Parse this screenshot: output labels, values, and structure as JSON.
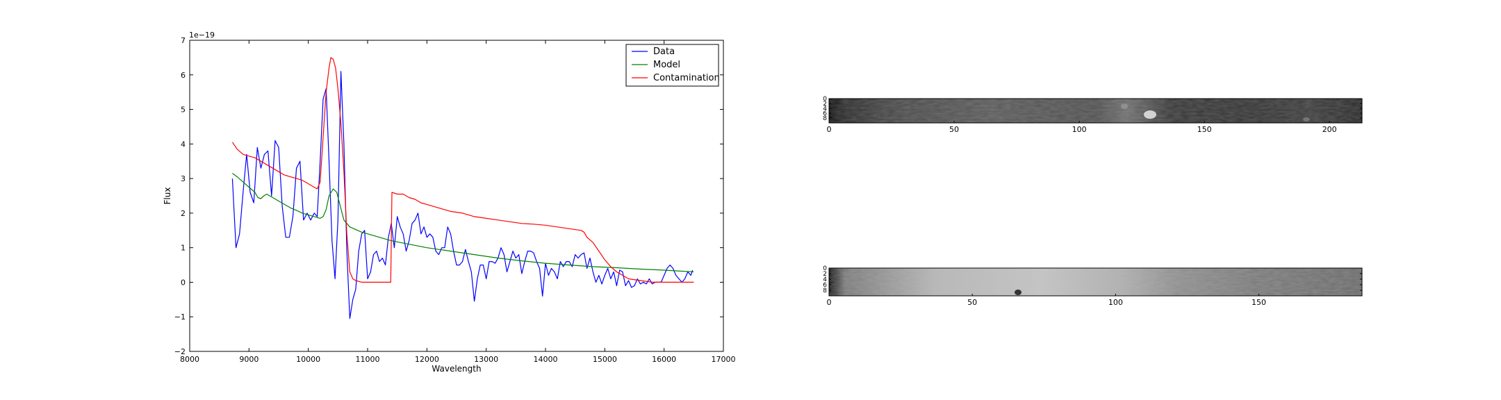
{
  "chart_data": [
    {
      "type": "line",
      "title": "",
      "xlabel": "Wavelength",
      "ylabel": "Flux",
      "offset_text": "1e−19",
      "xlim": [
        8000,
        17000
      ],
      "ylim": [
        -2,
        7
      ],
      "xticks": [
        8000,
        9000,
        10000,
        11000,
        12000,
        13000,
        14000,
        15000,
        16000,
        17000
      ],
      "yticks": [
        -2,
        -1,
        0,
        1,
        2,
        3,
        4,
        5,
        6,
        7
      ],
      "ytick_labels": [
        "−2",
        "−1",
        "0",
        "1",
        "2",
        "3",
        "4",
        "5",
        "6",
        "7"
      ],
      "grid": false,
      "legend_position": "top-right",
      "series": [
        {
          "name": "Data",
          "color": "#0000ff",
          "points": [
            [
              8720,
              3.0
            ],
            [
              8780,
              1.0
            ],
            [
              8840,
              1.4
            ],
            [
              8900,
              2.6
            ],
            [
              8960,
              3.7
            ],
            [
              9020,
              2.6
            ],
            [
              9080,
              2.3
            ],
            [
              9140,
              3.9
            ],
            [
              9200,
              3.3
            ],
            [
              9260,
              3.7
            ],
            [
              9320,
              3.8
            ],
            [
              9380,
              2.5
            ],
            [
              9440,
              4.1
            ],
            [
              9500,
              3.9
            ],
            [
              9560,
              2.2
            ],
            [
              9620,
              1.3
            ],
            [
              9680,
              1.3
            ],
            [
              9740,
              1.9
            ],
            [
              9800,
              3.3
            ],
            [
              9860,
              3.5
            ],
            [
              9920,
              1.8
            ],
            [
              9980,
              2.0
            ],
            [
              10040,
              1.8
            ],
            [
              10100,
              2.0
            ],
            [
              10150,
              1.9
            ],
            [
              10200,
              3.5
            ],
            [
              10250,
              5.3
            ],
            [
              10300,
              5.6
            ],
            [
              10350,
              3.5
            ],
            [
              10400,
              1.2
            ],
            [
              10450,
              0.1
            ],
            [
              10500,
              1.8
            ],
            [
              10550,
              6.1
            ],
            [
              10600,
              4.0
            ],
            [
              10650,
              0.9
            ],
            [
              10700,
              -1.05
            ],
            [
              10750,
              -0.5
            ],
            [
              10800,
              -0.2
            ],
            [
              10850,
              0.9
            ],
            [
              10900,
              1.4
            ],
            [
              10950,
              1.5
            ],
            [
              11000,
              0.1
            ],
            [
              11050,
              0.3
            ],
            [
              11100,
              0.8
            ],
            [
              11150,
              0.9
            ],
            [
              11200,
              0.6
            ],
            [
              11250,
              0.7
            ],
            [
              11300,
              0.5
            ],
            [
              11350,
              1.3
            ],
            [
              11400,
              1.7
            ],
            [
              11450,
              1.0
            ],
            [
              11500,
              1.9
            ],
            [
              11550,
              1.6
            ],
            [
              11600,
              1.4
            ],
            [
              11650,
              0.9
            ],
            [
              11700,
              1.2
            ],
            [
              11750,
              1.7
            ],
            [
              11800,
              1.8
            ],
            [
              11850,
              2.0
            ],
            [
              11900,
              1.4
            ],
            [
              11950,
              1.6
            ],
            [
              12000,
              1.3
            ],
            [
              12050,
              1.4
            ],
            [
              12100,
              1.3
            ],
            [
              12150,
              0.9
            ],
            [
              12200,
              0.8
            ],
            [
              12250,
              1.0
            ],
            [
              12300,
              1.0
            ],
            [
              12350,
              1.6
            ],
            [
              12400,
              1.4
            ],
            [
              12450,
              0.9
            ],
            [
              12500,
              0.5
            ],
            [
              12550,
              0.5
            ],
            [
              12600,
              0.6
            ],
            [
              12650,
              0.95
            ],
            [
              12700,
              0.6
            ],
            [
              12750,
              0.3
            ],
            [
              12800,
              -0.55
            ],
            [
              12850,
              0.1
            ],
            [
              12900,
              0.5
            ],
            [
              12950,
              0.5
            ],
            [
              13000,
              0.1
            ],
            [
              13050,
              0.6
            ],
            [
              13100,
              0.6
            ],
            [
              13150,
              0.55
            ],
            [
              13200,
              0.7
            ],
            [
              13250,
              1.0
            ],
            [
              13300,
              0.8
            ],
            [
              13350,
              0.3
            ],
            [
              13400,
              0.6
            ],
            [
              13450,
              0.9
            ],
            [
              13500,
              0.7
            ],
            [
              13550,
              0.8
            ],
            [
              13600,
              0.25
            ],
            [
              13650,
              0.6
            ],
            [
              13700,
              0.9
            ],
            [
              13750,
              0.9
            ],
            [
              13800,
              0.85
            ],
            [
              13850,
              0.6
            ],
            [
              13900,
              0.4
            ],
            [
              13950,
              -0.4
            ],
            [
              14000,
              0.55
            ],
            [
              14050,
              0.2
            ],
            [
              14100,
              0.4
            ],
            [
              14150,
              0.3
            ],
            [
              14200,
              0.1
            ],
            [
              14250,
              0.6
            ],
            [
              14300,
              0.45
            ],
            [
              14350,
              0.6
            ],
            [
              14400,
              0.6
            ],
            [
              14450,
              0.45
            ],
            [
              14500,
              0.8
            ],
            [
              14550,
              0.7
            ],
            [
              14600,
              0.8
            ],
            [
              14650,
              0.85
            ],
            [
              14700,
              0.4
            ],
            [
              14750,
              0.7
            ],
            [
              14800,
              0.3
            ],
            [
              14850,
              0.0
            ],
            [
              14900,
              0.2
            ],
            [
              14950,
              -0.05
            ],
            [
              15000,
              0.2
            ],
            [
              15050,
              0.4
            ],
            [
              15100,
              0.1
            ],
            [
              15150,
              0.3
            ],
            [
              15200,
              -0.1
            ],
            [
              15250,
              0.35
            ],
            [
              15300,
              0.3
            ],
            [
              15350,
              -0.1
            ],
            [
              15400,
              0.05
            ],
            [
              15450,
              -0.15
            ],
            [
              15500,
              -0.1
            ],
            [
              15550,
              0.1
            ],
            [
              15600,
              -0.05
            ],
            [
              15650,
              0.0
            ],
            [
              15700,
              -0.05
            ],
            [
              15750,
              0.1
            ],
            [
              15800,
              -0.05
            ],
            [
              15850,
              0.0
            ],
            [
              15900,
              0.0
            ],
            [
              15950,
              0.0
            ],
            [
              16000,
              0.2
            ],
            [
              16050,
              0.4
            ],
            [
              16100,
              0.5
            ],
            [
              16150,
              0.4
            ],
            [
              16200,
              0.2
            ],
            [
              16250,
              0.1
            ],
            [
              16300,
              0.0
            ],
            [
              16350,
              0.1
            ],
            [
              16400,
              0.3
            ],
            [
              16450,
              0.2
            ],
            [
              16480,
              0.35
            ]
          ]
        },
        {
          "name": "Model",
          "color": "#008000",
          "points": [
            [
              8720,
              3.15
            ],
            [
              8800,
              3.05
            ],
            [
              8900,
              2.9
            ],
            [
              9000,
              2.75
            ],
            [
              9100,
              2.6
            ],
            [
              9150,
              2.45
            ],
            [
              9200,
              2.42
            ],
            [
              9250,
              2.5
            ],
            [
              9300,
              2.55
            ],
            [
              9400,
              2.45
            ],
            [
              9500,
              2.35
            ],
            [
              9600,
              2.25
            ],
            [
              9700,
              2.15
            ],
            [
              9800,
              2.08
            ],
            [
              9900,
              2.0
            ],
            [
              10000,
              1.95
            ],
            [
              10100,
              1.9
            ],
            [
              10200,
              1.85
            ],
            [
              10250,
              1.9
            ],
            [
              10300,
              2.1
            ],
            [
              10350,
              2.5
            ],
            [
              10420,
              2.7
            ],
            [
              10480,
              2.6
            ],
            [
              10540,
              2.2
            ],
            [
              10600,
              1.8
            ],
            [
              10700,
              1.6
            ],
            [
              10900,
              1.45
            ],
            [
              11100,
              1.35
            ],
            [
              11400,
              1.2
            ],
            [
              11700,
              1.1
            ],
            [
              12000,
              1.0
            ],
            [
              12400,
              0.9
            ],
            [
              12800,
              0.8
            ],
            [
              13200,
              0.7
            ],
            [
              13600,
              0.62
            ],
            [
              14000,
              0.55
            ],
            [
              14400,
              0.5
            ],
            [
              14800,
              0.45
            ],
            [
              15200,
              0.42
            ],
            [
              15600,
              0.38
            ],
            [
              16000,
              0.35
            ],
            [
              16500,
              0.3
            ]
          ]
        },
        {
          "name": "Contamination",
          "color": "#ff0000",
          "points": [
            [
              8720,
              4.05
            ],
            [
              8800,
              3.85
            ],
            [
              8900,
              3.7
            ],
            [
              9000,
              3.65
            ],
            [
              9100,
              3.6
            ],
            [
              9200,
              3.5
            ],
            [
              9300,
              3.4
            ],
            [
              9400,
              3.3
            ],
            [
              9500,
              3.2
            ],
            [
              9600,
              3.1
            ],
            [
              9700,
              3.05
            ],
            [
              9800,
              3.0
            ],
            [
              9900,
              2.95
            ],
            [
              10000,
              2.85
            ],
            [
              10100,
              2.75
            ],
            [
              10150,
              2.7
            ],
            [
              10200,
              2.9
            ],
            [
              10250,
              4.2
            ],
            [
              10300,
              5.5
            ],
            [
              10350,
              6.2
            ],
            [
              10380,
              6.5
            ],
            [
              10420,
              6.45
            ],
            [
              10460,
              6.2
            ],
            [
              10500,
              5.6
            ],
            [
              10550,
              4.6
            ],
            [
              10600,
              3.2
            ],
            [
              10650,
              1.4
            ],
            [
              10700,
              0.3
            ],
            [
              10750,
              0.1
            ],
            [
              10800,
              0.05
            ],
            [
              10900,
              0.0
            ],
            [
              11000,
              0.0
            ],
            [
              11200,
              0.0
            ],
            [
              11390,
              0.0
            ],
            [
              11410,
              2.6
            ],
            [
              11500,
              2.55
            ],
            [
              11600,
              2.55
            ],
            [
              11700,
              2.45
            ],
            [
              11800,
              2.4
            ],
            [
              11900,
              2.3
            ],
            [
              12000,
              2.25
            ],
            [
              12100,
              2.2
            ],
            [
              12200,
              2.15
            ],
            [
              12300,
              2.1
            ],
            [
              12400,
              2.05
            ],
            [
              12600,
              2.0
            ],
            [
              12800,
              1.9
            ],
            [
              13000,
              1.85
            ],
            [
              13200,
              1.8
            ],
            [
              13400,
              1.75
            ],
            [
              13600,
              1.7
            ],
            [
              13800,
              1.68
            ],
            [
              14000,
              1.65
            ],
            [
              14200,
              1.6
            ],
            [
              14400,
              1.55
            ],
            [
              14600,
              1.5
            ],
            [
              14650,
              1.45
            ],
            [
              14700,
              1.3
            ],
            [
              14800,
              1.15
            ],
            [
              14900,
              0.9
            ],
            [
              15000,
              0.65
            ],
            [
              15100,
              0.45
            ],
            [
              15200,
              0.3
            ],
            [
              15400,
              0.1
            ],
            [
              15600,
              0.05
            ],
            [
              15800,
              0.0
            ],
            [
              16500,
              0.0
            ]
          ]
        }
      ]
    },
    {
      "type": "heatmap",
      "title": "",
      "xlim": [
        0,
        213
      ],
      "ylim": [
        0,
        10
      ],
      "xticks": [
        0,
        50,
        100,
        150,
        200
      ],
      "yticks": [
        0,
        2,
        4,
        6,
        8
      ],
      "grid": false
    },
    {
      "type": "heatmap",
      "title": "",
      "xlim": [
        0,
        186
      ],
      "ylim": [
        0,
        10
      ],
      "xticks": [
        0,
        50,
        100,
        150
      ],
      "yticks": [
        0,
        2,
        4,
        6,
        8
      ],
      "grid": false
    }
  ]
}
